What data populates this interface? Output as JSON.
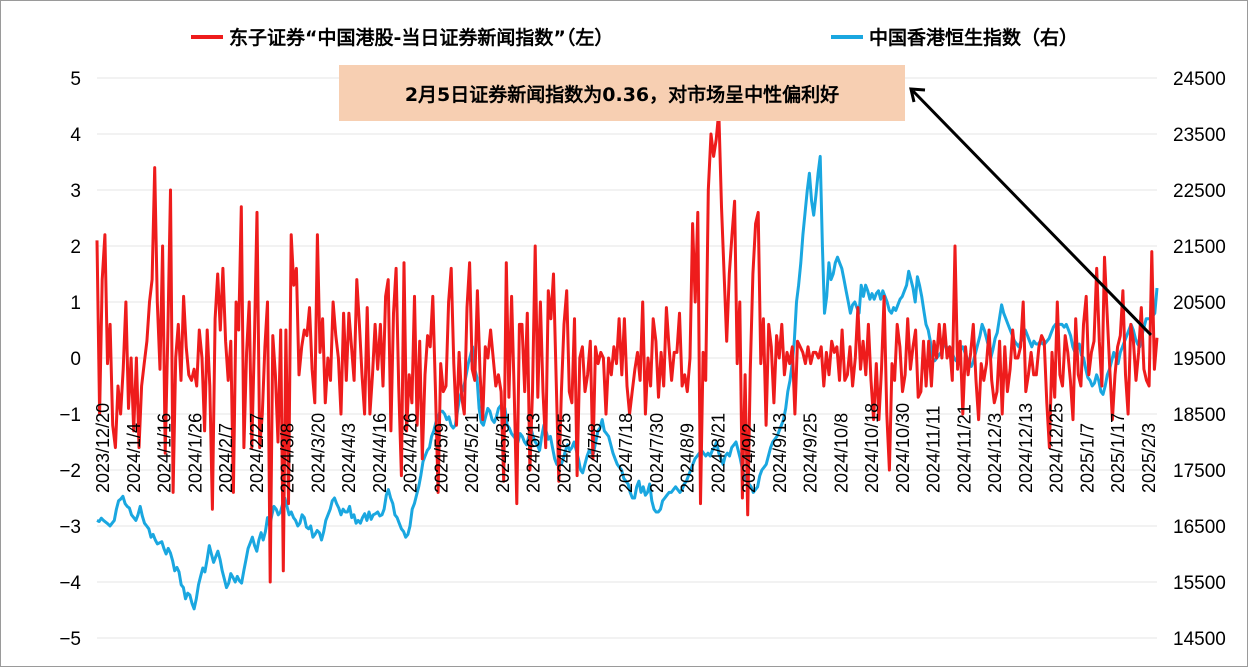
{
  "chart_data": {
    "type": "line",
    "annotation": "2月5日证券新闻指数为0.36，对市场呈中性偏利好",
    "colors": {
      "left_series": "#ee1c1c",
      "right_series": "#1aa7e0",
      "annotation_bg": "#f7cfb2",
      "grid": "#e6e6e6"
    },
    "legend": {
      "placement": "top"
    },
    "left_axis": {
      "ylim": [
        -5,
        5
      ],
      "ticks": [
        "5",
        "4",
        "3",
        "2",
        "1",
        "0",
        "−1",
        "−2",
        "−3",
        "−4",
        "−5"
      ]
    },
    "right_axis": {
      "ylim": [
        14500,
        24500
      ],
      "ticks": [
        "24500",
        "23500",
        "22500",
        "21500",
        "20500",
        "19500",
        "18500",
        "17500",
        "16500",
        "15500",
        "14500"
      ]
    },
    "x_tick_labels": [
      "2023/12/20",
      "2024/1/4",
      "2024/1/16",
      "2024/1/26",
      "2024/2/7",
      "2024/2/27",
      "2024/3/8",
      "2024/3/20",
      "2024/4/3",
      "2024/4/16",
      "2024/4/26",
      "2024/5/9",
      "2024/5/21",
      "2024/5/31",
      "2024/6/13",
      "2024/6/25",
      "2024/7/8",
      "2024/7/18",
      "2024/7/30",
      "2024/8/9",
      "2024/8/21",
      "2024/9/2",
      "2024/9/13",
      "2024/9/25",
      "2024/10/8",
      "2024/10/18",
      "2024/10/30",
      "2024/11/11",
      "2024/11/21",
      "2024/12/3",
      "2024/12/13",
      "2024/12/25",
      "2025/1/7",
      "2025/1/17",
      "2025/2/3"
    ],
    "series": [
      {
        "name": "东子证券“中国港股-当日证券新闻指数”（左）",
        "axis": "left",
        "values": [
          2.1,
          -1.0,
          1.4,
          2.2,
          -0.1,
          0.6,
          -1.2,
          -1.6,
          -0.5,
          -1.0,
          -0.2,
          1.0,
          -0.9,
          0.0,
          -1.3,
          0.0,
          -1.6,
          -0.5,
          -0.1,
          0.3,
          1.0,
          1.4,
          3.4,
          1.0,
          -0.2,
          2.0,
          -1.7,
          0.4,
          3.0,
          -2.4,
          0.0,
          0.6,
          -0.4,
          1.1,
          0.2,
          -0.3,
          -0.4,
          -0.2,
          -0.5,
          0.5,
          0.0,
          -1.3,
          0.5,
          -0.5,
          -2.7,
          0.7,
          1.5,
          0.5,
          1.6,
          0.3,
          -0.4,
          0.3,
          -2.4,
          1.0,
          0.5,
          2.7,
          -1.6,
          0.1,
          1.0,
          -1.6,
          0.3,
          2.6,
          -1.6,
          -1.0,
          0.2,
          1.0,
          -4.0,
          0.4,
          -0.3,
          -1.5,
          0.5,
          -3.8,
          0.5,
          -2.6,
          2.2,
          1.3,
          1.6,
          -0.3,
          0.2,
          0.5,
          0.4,
          0.9,
          -0.2,
          -0.8,
          2.2,
          0.1,
          0.7,
          -0.8,
          0.0,
          -0.4,
          1.0,
          0.4,
          0.0,
          -1.0,
          0.8,
          -0.4,
          0.8,
          0.2,
          -0.4,
          1.4,
          0.6,
          -0.3,
          -1.0,
          0.9,
          -1.0,
          -0.3,
          0.6,
          -0.2,
          0.6,
          -0.5,
          1.1,
          1.4,
          -1.3,
          0.8,
          1.6,
          -0.5,
          -2.1,
          1.7,
          -1.3,
          -0.3,
          -0.8,
          1.1,
          -1.2,
          0.3,
          -1.8,
          -0.3,
          0.4,
          0.2,
          1.1,
          -0.6,
          -2.4,
          -0.1,
          -0.6,
          -0.5,
          1.0,
          1.6,
          -0.1,
          -1.2,
          0.1,
          -0.7,
          -1.0,
          0.9,
          1.7,
          -0.2,
          -0.4,
          1.2,
          -0.3,
          -1.1,
          0.2,
          0.0,
          0.5,
          0.0,
          -0.5,
          -0.3,
          -0.6,
          -2.2,
          1.7,
          -0.7,
          1.1,
          -0.6,
          -2.6,
          0.6,
          0.6,
          -0.6,
          0.8,
          -2.0,
          -0.6,
          2.0,
          -0.7,
          1.0,
          -0.6,
          -1.6,
          1.2,
          0.7,
          1.5,
          -0.4,
          -2.2,
          -0.6,
          0.6,
          1.2,
          -0.6,
          -0.8,
          0.7,
          -2.1,
          0.0,
          0.2,
          -0.6,
          -0.3,
          0.3,
          -1.8,
          0.2,
          -0.1,
          0.1,
          0.0,
          -1.0,
          0.0,
          -0.3,
          0.2,
          -0.1,
          0.7,
          -0.3,
          0.7,
          -0.5,
          -1.0,
          -0.6,
          -0.2,
          0.1,
          -0.4,
          1.0,
          -1.0,
          0.0,
          -0.5,
          0.7,
          0.3,
          -0.7,
          0.1,
          -0.5,
          0.9,
          0.2,
          -0.4,
          0.1,
          0.1,
          0.8,
          -0.5,
          -0.3,
          -0.6,
          0.0,
          2.4,
          1.0,
          2.6,
          -2.6,
          0.1,
          -0.4,
          3.0,
          4.0,
          3.6,
          3.9,
          4.4,
          2.7,
          1.5,
          0.3,
          1.5,
          2.2,
          2.8,
          -0.1,
          1.0,
          -2.5,
          -0.3,
          -2.8,
          -0.2,
          1.5,
          2.4,
          2.6,
          -0.1,
          0.7,
          -1.2,
          0.6,
          0.2,
          -0.8,
          0.4,
          0.0,
          0.6,
          -0.3,
          0.1,
          -0.1,
          0.2,
          -1.0,
          0.3,
          0.2,
          0.1,
          -0.1,
          0.2,
          -0.1,
          0.1,
          0.1,
          0.0,
          0.2,
          -0.5,
          0.1,
          -0.3,
          0.3,
          0.1,
          0.2,
          -0.4,
          0.5,
          -0.4,
          -0.3,
          0.2,
          -0.5,
          0.0,
          0.9,
          -0.2,
          0.3,
          -0.3,
          0.6,
          -0.4,
          -1.1,
          -0.1,
          -1.1,
          -0.2,
          1.1,
          -1.0,
          -2.0,
          -0.1,
          -0.4,
          0.6,
          0.2,
          -0.6,
          -0.3,
          0.7,
          -0.2,
          0.2,
          0.5,
          -0.7,
          -0.6,
          0.3,
          -0.5,
          0.3,
          -0.5,
          0.3,
          0.0,
          0.6,
          0.0,
          0.6,
          0.0,
          0.2,
          -0.4,
          2.0,
          -0.2,
          0.3,
          -1.0,
          0.2,
          -0.3,
          0.1,
          0.6,
          -0.4,
          -1.1,
          -0.1,
          -0.4,
          -0.1,
          0.5,
          -0.4,
          -0.8,
          -0.6,
          0.3,
          -1.0,
          0.2,
          -0.6,
          -0.2,
          0.5,
          0.0,
          0.0,
          0.2,
          1.0,
          -0.6,
          -0.3,
          0.1,
          -0.3,
          -0.3,
          0.2,
          0.4,
          0.3,
          -0.8,
          -1.6,
          0.1,
          -0.7,
          1.0,
          -0.3,
          -0.5,
          0.4,
          0.1,
          -0.4,
          -1.1,
          0.7,
          -0.3,
          -0.5,
          0.6,
          1.1,
          -0.3,
          0.1,
          0.3,
          1.6,
          0.3,
          -0.5,
          1.8,
          0.8,
          -0.2,
          -1.1,
          -0.3,
          0.2,
          0.4,
          1.2,
          -0.3,
          -1.0,
          0.6,
          0.3,
          -0.4,
          0.1,
          0.9,
          -0.2,
          -0.4,
          -0.5,
          1.9,
          -0.2,
          0.36
        ]
      },
      {
        "name": "中国香港恒生指数（右）",
        "axis": "right",
        "values": [
          16600,
          16580,
          16640,
          16600,
          16570,
          16540,
          16500,
          16550,
          16600,
          16800,
          16950,
          16980,
          17030,
          16900,
          16850,
          16820,
          16700,
          16650,
          16600,
          16700,
          16850,
          16680,
          16550,
          16500,
          16450,
          16300,
          16350,
          16250,
          16180,
          16200,
          16220,
          16100,
          16000,
          16100,
          16020,
          15880,
          15700,
          15760,
          15680,
          15450,
          15400,
          15200,
          15300,
          15270,
          15120,
          15020,
          15200,
          15450,
          15600,
          15750,
          15680,
          15900,
          16150,
          16000,
          15850,
          15950,
          16050,
          15900,
          15700,
          15550,
          15400,
          15480,
          15650,
          15580,
          15500,
          15600,
          15520,
          15480,
          15700,
          15900,
          16100,
          16200,
          16300,
          16150,
          16050,
          16250,
          16380,
          16250,
          16400,
          16650,
          16500,
          16700,
          16850,
          16800,
          16700,
          16750,
          16900,
          17000,
          16850,
          16700,
          16750,
          16650,
          16600,
          16500,
          16550,
          16700,
          16650,
          16480,
          16450,
          16500,
          16300,
          16350,
          16420,
          16380,
          16250,
          16400,
          16600,
          16700,
          16800,
          16950,
          17000,
          16900,
          16820,
          16700,
          16800,
          16750,
          16750,
          16850,
          16650,
          16700,
          16550,
          16600,
          16550,
          16650,
          16720,
          16600,
          16750,
          16620,
          16700,
          16720,
          16750,
          16680,
          16700,
          16800,
          17050,
          17150,
          17000,
          16900,
          16700,
          16650,
          16550,
          16450,
          16400,
          16300,
          16350,
          16500,
          16800,
          16900,
          17050,
          17200,
          17400,
          17650,
          17750,
          17850,
          17900,
          18100,
          18200,
          18350,
          18450,
          18550,
          18550,
          18500,
          18400,
          18450,
          18300,
          18250,
          18300,
          18550,
          18800,
          18900,
          19000,
          19200,
          19400,
          19550,
          19700,
          19300,
          19150,
          18600,
          18350,
          18300,
          18450,
          18600,
          18550,
          18400,
          18350,
          18450,
          18600,
          18650,
          18500,
          18600,
          18300,
          18250,
          18150,
          18100,
          18050,
          18000,
          18150,
          18100,
          18000,
          17950,
          18100,
          18250,
          18100,
          18000,
          17950,
          17850,
          18100,
          18300,
          18200,
          18050,
          18100,
          17900,
          17700,
          17600,
          17650,
          17600,
          17700,
          17850,
          17950,
          17850,
          17900,
          18000,
          17850,
          17700,
          17500,
          17450,
          17600,
          17750,
          17850,
          17800,
          17800,
          18000,
          18200,
          18250,
          18400,
          18200,
          18150,
          18100,
          17950,
          17800,
          17700,
          17600,
          17550,
          17500,
          17350,
          17300,
          17250,
          17100,
          17000,
          17000,
          17200,
          17300,
          17100,
          17200,
          17050,
          17100,
          17250,
          16950,
          16800,
          16750,
          16750,
          16800,
          16950,
          17000,
          17050,
          17100,
          17100,
          17150,
          17200,
          17150,
          17100,
          17150,
          17250,
          17300,
          17400,
          17500,
          17600,
          17700,
          17750,
          17800,
          17850,
          17800,
          17750,
          17800,
          17750,
          17850,
          17900,
          18000,
          17800,
          17700,
          17600,
          17750,
          17800,
          17750,
          17900,
          17950,
          18000,
          17850,
          17700,
          17500,
          17350,
          17300,
          17250,
          17200,
          17100,
          17150,
          17200,
          17400,
          17500,
          17550,
          17600,
          17750,
          17900,
          18000,
          18050,
          18100,
          18200,
          18300,
          18400,
          18600,
          18900,
          19100,
          19400,
          19800,
          20500,
          20800,
          21200,
          21700,
          22100,
          22500,
          22800,
          22300,
          22050,
          22400,
          22800,
          23100,
          21500,
          20300,
          20600,
          21200,
          20900,
          21000,
          21200,
          21300,
          21200,
          21100,
          20900,
          20700,
          20500,
          20300,
          20450,
          20500,
          20400,
          20300,
          20800,
          20600,
          20800,
          20700,
          20550,
          20650,
          20550,
          20650,
          20700,
          20550,
          20700,
          20600,
          20500,
          20350,
          20300,
          20400,
          20350,
          20450,
          20550,
          20600,
          20700,
          20800,
          21050,
          20900,
          20750,
          20500,
          20950,
          20800,
          20600,
          20350,
          20100,
          20000,
          19800,
          19500,
          19450,
          19500,
          19550,
          19600,
          19700,
          19750,
          19650,
          19700,
          19600,
          19500,
          19450,
          19550,
          19650,
          19700,
          19600,
          19500,
          19400,
          19350,
          19450,
          19600,
          19750,
          19900,
          20100,
          20000,
          19850,
          19700,
          19500,
          19650,
          19850,
          19950,
          20200,
          20450,
          20300,
          20200,
          20100,
          20000,
          19900,
          19800,
          19750,
          19700,
          19800,
          19850,
          20000,
          19900,
          19800,
          19700,
          19800,
          19750,
          19750,
          19800,
          19750,
          19750,
          19800,
          19850,
          19950,
          20050,
          20100,
          20100,
          20100,
          20100,
          20050,
          20100,
          20000,
          19900,
          19700,
          19600,
          19650,
          19750,
          19550,
          19500,
          19300,
          19150,
          19100,
          19000,
          19050,
          19200,
          19100,
          18900,
          18850,
          19000,
          19200,
          19300,
          19450,
          19600,
          19500,
          19400,
          19600,
          19700,
          19800,
          19900,
          20000,
          20100,
          20000,
          19850,
          19750,
          19700,
          19900,
          20050,
          20200,
          20200,
          20200,
          20250,
          20300,
          20750
        ]
      }
    ]
  }
}
